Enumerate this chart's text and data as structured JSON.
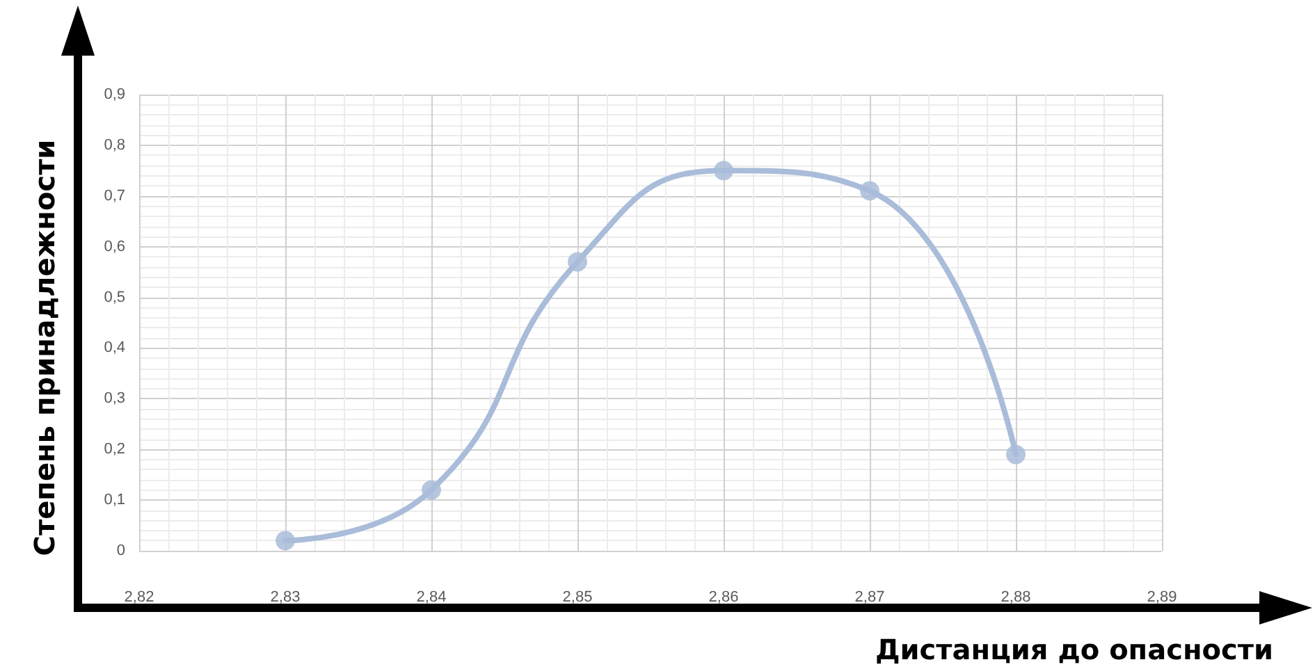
{
  "chart_data": {
    "type": "line",
    "xlabel": "Дистанция до опасности",
    "ylabel": "Степень принадлежности",
    "x": [
      2.83,
      2.84,
      2.85,
      2.86,
      2.87,
      2.88
    ],
    "series": [
      {
        "color": "#a9bcd9",
        "values": [
          0.02,
          0.12,
          0.57,
          0.75,
          0.71,
          0.19
        ]
      }
    ],
    "xlim": [
      2.82,
      2.89
    ],
    "xticks": [
      {
        "value": 2.82,
        "label": "2,82"
      },
      {
        "value": 2.83,
        "label": "2,83"
      },
      {
        "value": 2.84,
        "label": "2,84"
      },
      {
        "value": 2.85,
        "label": "2,85"
      },
      {
        "value": 2.86,
        "label": "2,86"
      },
      {
        "value": 2.87,
        "label": "2,87"
      },
      {
        "value": 2.88,
        "label": "2,88"
      },
      {
        "value": 2.89,
        "label": "2,89"
      }
    ],
    "ylim": [
      0,
      0.9
    ],
    "yticks": [
      0,
      {
        "value": 0.1,
        "label": "0,1"
      },
      {
        "value": 0.2,
        "label": "0,2"
      },
      {
        "value": 0.3,
        "label": "0,3"
      },
      {
        "value": 0.4,
        "label": "0,4"
      },
      {
        "value": 0.5,
        "label": "0,5"
      },
      {
        "value": 0.6,
        "label": "0,6"
      },
      {
        "value": 0.7,
        "label": "0,7"
      },
      {
        "value": 0.8,
        "label": "0,8"
      },
      {
        "value": 0.9,
        "label": "0,9"
      }
    ],
    "grid": true,
    "marker": "circle",
    "line_style": "solid"
  }
}
